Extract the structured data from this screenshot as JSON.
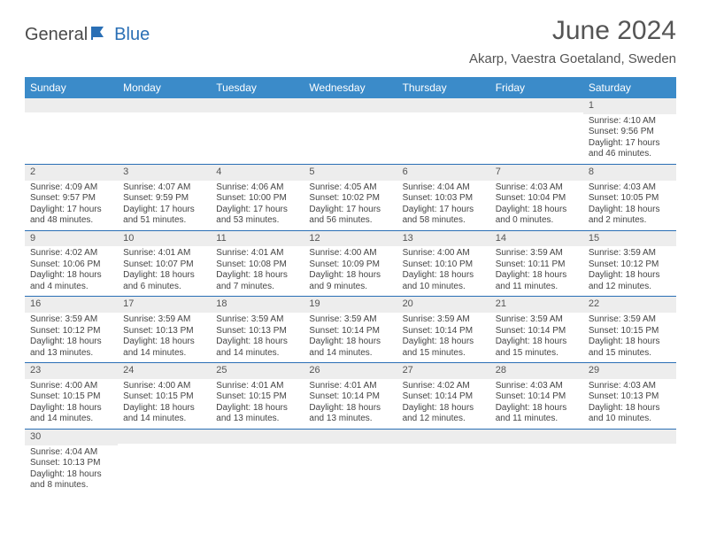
{
  "logo": {
    "part1": "General",
    "part2": "Blue"
  },
  "title": "June 2024",
  "location": "Akarp, Vaestra Goetaland, Sweden",
  "colors": {
    "header_bg": "#3b8bc9",
    "border": "#2a6fb5",
    "daynum_bg": "#ededed",
    "text": "#444444"
  },
  "day_headers": [
    "Sunday",
    "Monday",
    "Tuesday",
    "Wednesday",
    "Thursday",
    "Friday",
    "Saturday"
  ],
  "weeks": [
    [
      {
        "n": "",
        "sr": "",
        "ss": "",
        "dl": ""
      },
      {
        "n": "",
        "sr": "",
        "ss": "",
        "dl": ""
      },
      {
        "n": "",
        "sr": "",
        "ss": "",
        "dl": ""
      },
      {
        "n": "",
        "sr": "",
        "ss": "",
        "dl": ""
      },
      {
        "n": "",
        "sr": "",
        "ss": "",
        "dl": ""
      },
      {
        "n": "",
        "sr": "",
        "ss": "",
        "dl": ""
      },
      {
        "n": "1",
        "sr": "Sunrise: 4:10 AM",
        "ss": "Sunset: 9:56 PM",
        "dl": "Daylight: 17 hours and 46 minutes."
      }
    ],
    [
      {
        "n": "2",
        "sr": "Sunrise: 4:09 AM",
        "ss": "Sunset: 9:57 PM",
        "dl": "Daylight: 17 hours and 48 minutes."
      },
      {
        "n": "3",
        "sr": "Sunrise: 4:07 AM",
        "ss": "Sunset: 9:59 PM",
        "dl": "Daylight: 17 hours and 51 minutes."
      },
      {
        "n": "4",
        "sr": "Sunrise: 4:06 AM",
        "ss": "Sunset: 10:00 PM",
        "dl": "Daylight: 17 hours and 53 minutes."
      },
      {
        "n": "5",
        "sr": "Sunrise: 4:05 AM",
        "ss": "Sunset: 10:02 PM",
        "dl": "Daylight: 17 hours and 56 minutes."
      },
      {
        "n": "6",
        "sr": "Sunrise: 4:04 AM",
        "ss": "Sunset: 10:03 PM",
        "dl": "Daylight: 17 hours and 58 minutes."
      },
      {
        "n": "7",
        "sr": "Sunrise: 4:03 AM",
        "ss": "Sunset: 10:04 PM",
        "dl": "Daylight: 18 hours and 0 minutes."
      },
      {
        "n": "8",
        "sr": "Sunrise: 4:03 AM",
        "ss": "Sunset: 10:05 PM",
        "dl": "Daylight: 18 hours and 2 minutes."
      }
    ],
    [
      {
        "n": "9",
        "sr": "Sunrise: 4:02 AM",
        "ss": "Sunset: 10:06 PM",
        "dl": "Daylight: 18 hours and 4 minutes."
      },
      {
        "n": "10",
        "sr": "Sunrise: 4:01 AM",
        "ss": "Sunset: 10:07 PM",
        "dl": "Daylight: 18 hours and 6 minutes."
      },
      {
        "n": "11",
        "sr": "Sunrise: 4:01 AM",
        "ss": "Sunset: 10:08 PM",
        "dl": "Daylight: 18 hours and 7 minutes."
      },
      {
        "n": "12",
        "sr": "Sunrise: 4:00 AM",
        "ss": "Sunset: 10:09 PM",
        "dl": "Daylight: 18 hours and 9 minutes."
      },
      {
        "n": "13",
        "sr": "Sunrise: 4:00 AM",
        "ss": "Sunset: 10:10 PM",
        "dl": "Daylight: 18 hours and 10 minutes."
      },
      {
        "n": "14",
        "sr": "Sunrise: 3:59 AM",
        "ss": "Sunset: 10:11 PM",
        "dl": "Daylight: 18 hours and 11 minutes."
      },
      {
        "n": "15",
        "sr": "Sunrise: 3:59 AM",
        "ss": "Sunset: 10:12 PM",
        "dl": "Daylight: 18 hours and 12 minutes."
      }
    ],
    [
      {
        "n": "16",
        "sr": "Sunrise: 3:59 AM",
        "ss": "Sunset: 10:12 PM",
        "dl": "Daylight: 18 hours and 13 minutes."
      },
      {
        "n": "17",
        "sr": "Sunrise: 3:59 AM",
        "ss": "Sunset: 10:13 PM",
        "dl": "Daylight: 18 hours and 14 minutes."
      },
      {
        "n": "18",
        "sr": "Sunrise: 3:59 AM",
        "ss": "Sunset: 10:13 PM",
        "dl": "Daylight: 18 hours and 14 minutes."
      },
      {
        "n": "19",
        "sr": "Sunrise: 3:59 AM",
        "ss": "Sunset: 10:14 PM",
        "dl": "Daylight: 18 hours and 14 minutes."
      },
      {
        "n": "20",
        "sr": "Sunrise: 3:59 AM",
        "ss": "Sunset: 10:14 PM",
        "dl": "Daylight: 18 hours and 15 minutes."
      },
      {
        "n": "21",
        "sr": "Sunrise: 3:59 AM",
        "ss": "Sunset: 10:14 PM",
        "dl": "Daylight: 18 hours and 15 minutes."
      },
      {
        "n": "22",
        "sr": "Sunrise: 3:59 AM",
        "ss": "Sunset: 10:15 PM",
        "dl": "Daylight: 18 hours and 15 minutes."
      }
    ],
    [
      {
        "n": "23",
        "sr": "Sunrise: 4:00 AM",
        "ss": "Sunset: 10:15 PM",
        "dl": "Daylight: 18 hours and 14 minutes."
      },
      {
        "n": "24",
        "sr": "Sunrise: 4:00 AM",
        "ss": "Sunset: 10:15 PM",
        "dl": "Daylight: 18 hours and 14 minutes."
      },
      {
        "n": "25",
        "sr": "Sunrise: 4:01 AM",
        "ss": "Sunset: 10:15 PM",
        "dl": "Daylight: 18 hours and 13 minutes."
      },
      {
        "n": "26",
        "sr": "Sunrise: 4:01 AM",
        "ss": "Sunset: 10:14 PM",
        "dl": "Daylight: 18 hours and 13 minutes."
      },
      {
        "n": "27",
        "sr": "Sunrise: 4:02 AM",
        "ss": "Sunset: 10:14 PM",
        "dl": "Daylight: 18 hours and 12 minutes."
      },
      {
        "n": "28",
        "sr": "Sunrise: 4:03 AM",
        "ss": "Sunset: 10:14 PM",
        "dl": "Daylight: 18 hours and 11 minutes."
      },
      {
        "n": "29",
        "sr": "Sunrise: 4:03 AM",
        "ss": "Sunset: 10:13 PM",
        "dl": "Daylight: 18 hours and 10 minutes."
      }
    ],
    [
      {
        "n": "30",
        "sr": "Sunrise: 4:04 AM",
        "ss": "Sunset: 10:13 PM",
        "dl": "Daylight: 18 hours and 8 minutes."
      },
      {
        "n": "",
        "sr": "",
        "ss": "",
        "dl": ""
      },
      {
        "n": "",
        "sr": "",
        "ss": "",
        "dl": ""
      },
      {
        "n": "",
        "sr": "",
        "ss": "",
        "dl": ""
      },
      {
        "n": "",
        "sr": "",
        "ss": "",
        "dl": ""
      },
      {
        "n": "",
        "sr": "",
        "ss": "",
        "dl": ""
      },
      {
        "n": "",
        "sr": "",
        "ss": "",
        "dl": ""
      }
    ]
  ]
}
